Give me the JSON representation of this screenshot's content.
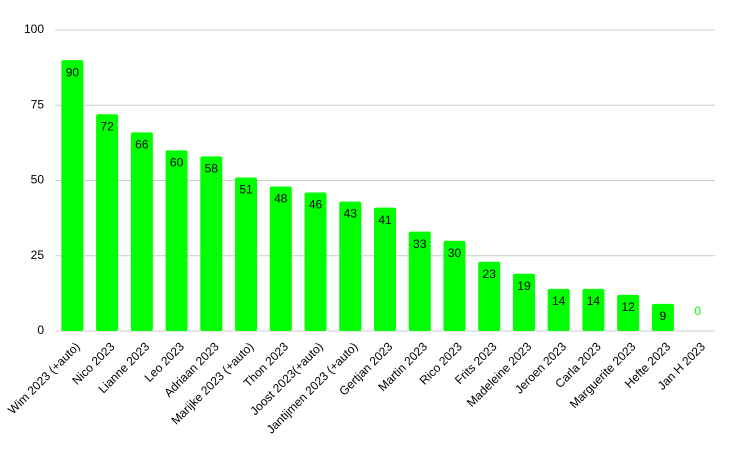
{
  "chart_data": {
    "type": "bar",
    "categories": [
      "Wim 2023 (+auto)",
      "Nico 2023",
      "Lianne 2023",
      "Leo 2023",
      "Adriaan 2023",
      "Marijke 2023 (+auto)",
      "Thon 2023",
      "Joost 2023(+auto)",
      "Jantijmen 2023 (+auto)",
      "Gertjan 2023",
      "Martin 2023",
      "Rico 2023",
      "Frits 2023",
      "Madeleine 2023",
      "Jeroen 2023",
      "Carla 2023",
      "Marguerite 2023",
      "Hefte 2023",
      "Jan H 2023"
    ],
    "values": [
      90,
      72,
      66,
      60,
      58,
      51,
      48,
      46,
      43,
      41,
      33,
      30,
      23,
      19,
      14,
      14,
      12,
      9,
      0
    ],
    "color": "#00ff00",
    "ylim": [
      0,
      100
    ],
    "yticks": [
      0,
      25,
      50,
      75,
      100
    ],
    "grid": true
  }
}
